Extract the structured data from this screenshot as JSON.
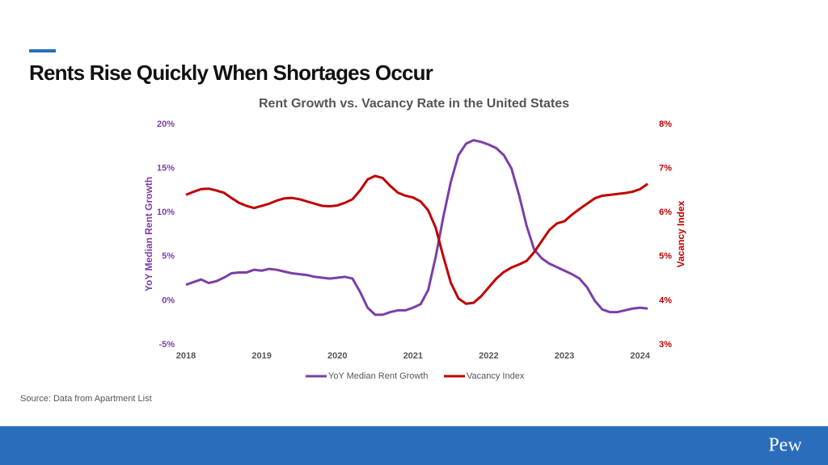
{
  "header": {
    "title": "Rents Rise Quickly When Shortages Occur"
  },
  "source": "Source: Data from Apartment List",
  "logo": "Pew",
  "chart_data": {
    "type": "line",
    "title": "Rent Growth vs. Vacancy Rate in the United States",
    "ylabel": "YoY Median Rent Growth",
    "y2label": "Vacancy Index",
    "legend": "bottom",
    "xlim": [
      2018,
      2024.1
    ],
    "xticks": [
      2018,
      2019,
      2020,
      2021,
      2022,
      2023,
      2024
    ],
    "ylim": [
      -5,
      20
    ],
    "yticks": [
      {
        "value": -5,
        "label": "-5%"
      },
      {
        "value": 0,
        "label": "0%"
      },
      {
        "value": 5,
        "label": "5%"
      },
      {
        "value": 10,
        "label": "10%"
      },
      {
        "value": 15,
        "label": "15%"
      },
      {
        "value": 20,
        "label": "20%"
      }
    ],
    "y2lim": [
      3,
      8
    ],
    "y2ticks": [
      {
        "value": 3,
        "label": "3%"
      },
      {
        "value": 4,
        "label": "4%"
      },
      {
        "value": 5,
        "label": "5%"
      },
      {
        "value": 6,
        "label": "6%"
      },
      {
        "value": 7,
        "label": "7%"
      },
      {
        "value": 8,
        "label": "8%"
      }
    ],
    "x": [
      2018.0,
      2018.1,
      2018.2,
      2018.3,
      2018.4,
      2018.5,
      2018.6,
      2018.7,
      2018.8,
      2018.9,
      2019.0,
      2019.1,
      2019.2,
      2019.3,
      2019.4,
      2019.5,
      2019.6,
      2019.7,
      2019.8,
      2019.9,
      2020.0,
      2020.1,
      2020.2,
      2020.3,
      2020.4,
      2020.5,
      2020.6,
      2020.7,
      2020.8,
      2020.9,
      2021.0,
      2021.1,
      2021.2,
      2021.3,
      2021.4,
      2021.5,
      2021.6,
      2021.7,
      2021.8,
      2021.9,
      2022.0,
      2022.1,
      2022.2,
      2022.3,
      2022.4,
      2022.5,
      2022.6,
      2022.7,
      2022.8,
      2022.9,
      2023.0,
      2023.1,
      2023.2,
      2023.3,
      2023.4,
      2023.5,
      2023.6,
      2023.7,
      2023.8,
      2023.9,
      2024.0,
      2024.1
    ],
    "series": [
      {
        "name": "YoY Median Rent Growth",
        "color": "#7b3fa8",
        "axis": "y",
        "values": [
          1.8,
          2.1,
          2.4,
          2.0,
          2.2,
          2.6,
          3.1,
          3.2,
          3.2,
          3.5,
          3.4,
          3.6,
          3.5,
          3.3,
          3.1,
          3.0,
          2.9,
          2.7,
          2.6,
          2.5,
          2.6,
          2.7,
          2.5,
          1.0,
          -0.8,
          -1.6,
          -1.6,
          -1.3,
          -1.1,
          -1.1,
          -0.8,
          -0.4,
          1.2,
          5.0,
          9.5,
          13.5,
          16.5,
          17.8,
          18.2,
          18.0,
          17.7,
          17.3,
          16.5,
          15.0,
          12.0,
          8.5,
          5.8,
          4.8,
          4.2,
          3.8,
          3.4,
          3.0,
          2.5,
          1.5,
          0.0,
          -1.0,
          -1.3,
          -1.3,
          -1.1,
          -0.9,
          -0.8,
          -0.9
        ]
      },
      {
        "name": "Vacancy Index",
        "color": "#c00000",
        "axis": "y2",
        "values": [
          6.4,
          6.47,
          6.53,
          6.54,
          6.5,
          6.45,
          6.33,
          6.22,
          6.15,
          6.1,
          6.15,
          6.2,
          6.27,
          6.32,
          6.33,
          6.3,
          6.25,
          6.2,
          6.15,
          6.14,
          6.16,
          6.22,
          6.3,
          6.5,
          6.75,
          6.83,
          6.78,
          6.6,
          6.45,
          6.38,
          6.34,
          6.25,
          6.05,
          5.65,
          5.0,
          4.4,
          4.05,
          3.93,
          3.95,
          4.1,
          4.3,
          4.5,
          4.65,
          4.75,
          4.82,
          4.9,
          5.1,
          5.35,
          5.6,
          5.75,
          5.8,
          5.95,
          6.08,
          6.2,
          6.32,
          6.38,
          6.4,
          6.42,
          6.44,
          6.47,
          6.53,
          6.65
        ]
      }
    ]
  }
}
